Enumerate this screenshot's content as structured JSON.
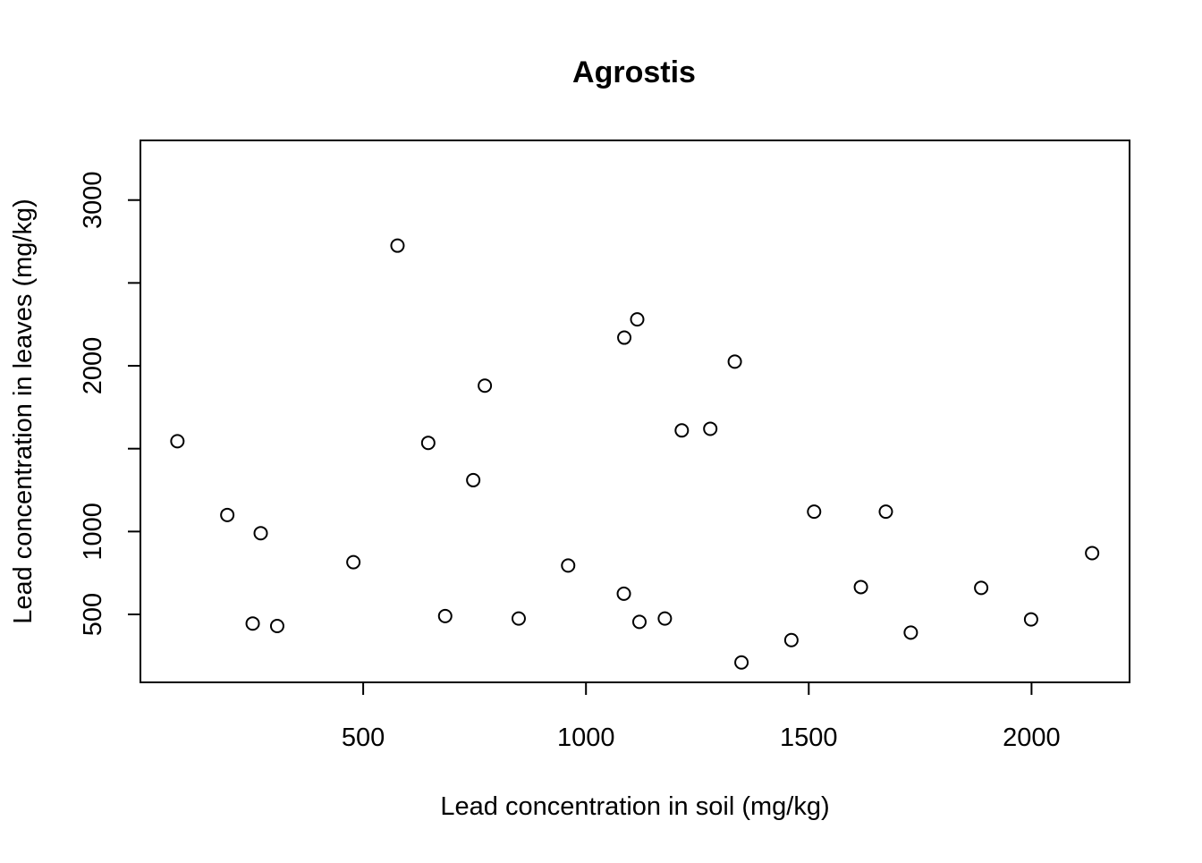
{
  "chart_data": {
    "type": "scatter",
    "title": "Agrostis",
    "xlabel": "Lead concentration in soil (mg/kg)",
    "ylabel": "Lead concentration in leaves (mg/kg)",
    "xlim": [
      0,
      2220
    ],
    "ylim": [
      90,
      3360
    ],
    "x_ticks": [
      500,
      1000,
      1500,
      2000
    ],
    "x_tick_labels": [
      "500",
      "1000",
      "1500",
      "2000"
    ],
    "y_ticks": [
      500,
      1000,
      1500,
      2000,
      2500,
      3000
    ],
    "y_tick_labels": [
      "500",
      "1000",
      "",
      "2000",
      "",
      "3000"
    ],
    "grid": false,
    "legend": "none",
    "marker": "open-circle",
    "points": [
      {
        "x": 83,
        "y": 1545
      },
      {
        "x": 195,
        "y": 1100
      },
      {
        "x": 252,
        "y": 445
      },
      {
        "x": 270,
        "y": 990
      },
      {
        "x": 307,
        "y": 430
      },
      {
        "x": 478,
        "y": 815
      },
      {
        "x": 577,
        "y": 2725
      },
      {
        "x": 646,
        "y": 1535
      },
      {
        "x": 684,
        "y": 490
      },
      {
        "x": 747,
        "y": 1310
      },
      {
        "x": 773,
        "y": 1880
      },
      {
        "x": 849,
        "y": 475
      },
      {
        "x": 960,
        "y": 795
      },
      {
        "x": 1085,
        "y": 625
      },
      {
        "x": 1086,
        "y": 2170
      },
      {
        "x": 1115,
        "y": 2280
      },
      {
        "x": 1120,
        "y": 455
      },
      {
        "x": 1177,
        "y": 475
      },
      {
        "x": 1215,
        "y": 1610
      },
      {
        "x": 1279,
        "y": 1620
      },
      {
        "x": 1334,
        "y": 2025
      },
      {
        "x": 1349,
        "y": 210
      },
      {
        "x": 1461,
        "y": 345
      },
      {
        "x": 1512,
        "y": 1120
      },
      {
        "x": 1617,
        "y": 665
      },
      {
        "x": 1673,
        "y": 1120
      },
      {
        "x": 1729,
        "y": 390
      },
      {
        "x": 1887,
        "y": 660
      },
      {
        "x": 1999,
        "y": 470
      },
      {
        "x": 2136,
        "y": 870
      }
    ]
  }
}
